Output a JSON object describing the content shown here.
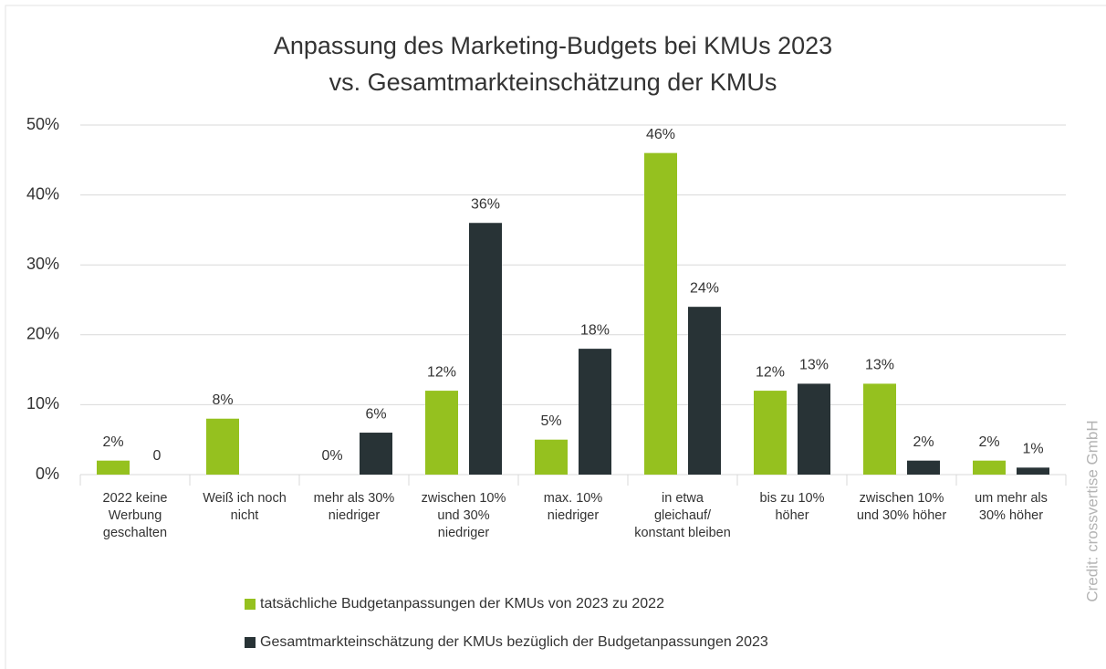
{
  "chart_data": {
    "type": "bar",
    "title": "Anpassung des Marketing-Budgets bei KMUs 2023\nvs. Gesamtmarkteinschätzung der KMUs",
    "categories": [
      "2022 keine Werbung geschalten",
      "Weiß ich noch nicht",
      "mehr als 30% niedriger",
      "zwischen 10% und 30% niedriger",
      "max. 10% niedriger",
      "in etwa gleichauf/ konstant bleiben",
      "bis zu 10% höher",
      "zwischen 10% und 30% höher",
      "um mehr als 30% höher"
    ],
    "series": [
      {
        "name": "tatsächliche Budgetanpassungen der KMUs von 2023 zu 2022",
        "color": "#95c11f",
        "values": [
          2,
          8,
          0,
          12,
          5,
          46,
          12,
          13,
          2
        ],
        "value_labels": [
          "2%",
          "8%",
          "0%",
          "12%",
          "5%",
          "46%",
          "12%",
          "13%",
          "2%"
        ]
      },
      {
        "name": "Gesamtmarkteinschätzung der KMUs bezüglich der Budgetanpassungen 2023",
        "color": "#283336",
        "values": [
          0,
          null,
          6,
          36,
          18,
          24,
          13,
          2,
          1
        ],
        "value_labels": [
          "0",
          null,
          "6%",
          "36%",
          "18%",
          "24%",
          "13%",
          "2%",
          "1%"
        ]
      }
    ],
    "ylim": [
      0,
      50
    ],
    "yticks": [
      {
        "value": 0,
        "label": "0%"
      },
      {
        "value": 10,
        "label": "10%"
      },
      {
        "value": 20,
        "label": "20%"
      },
      {
        "value": 30,
        "label": "30%"
      },
      {
        "value": 40,
        "label": "40%"
      },
      {
        "value": 50,
        "label": "50%"
      }
    ],
    "grid": true,
    "credit": "Credit: crossvertise GmbH"
  }
}
